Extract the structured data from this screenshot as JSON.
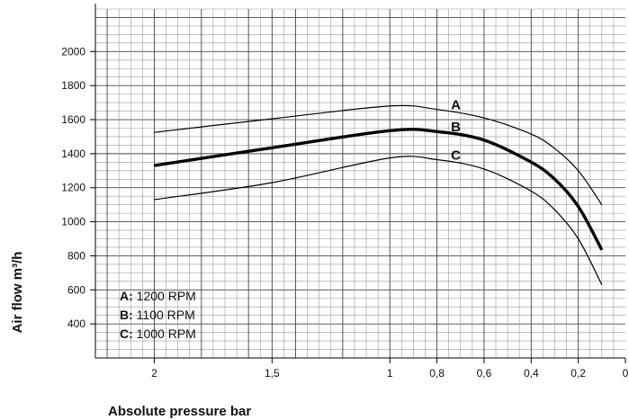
{
  "chart_data": {
    "type": "line",
    "title": "",
    "xlabel": "Absolute pressure  bar",
    "ylabel": "Air flow  m³/h",
    "x_axis_reversed": true,
    "xlim": [
      0,
      2.25
    ],
    "ylim": [
      200,
      2250
    ],
    "grid": true,
    "x_ticks": [
      2,
      1.5,
      1,
      0.8,
      0.6,
      0.4,
      0.2,
      0
    ],
    "x_tick_labels": [
      "2",
      "1,5",
      "1",
      "0,8",
      "0,6",
      "0,4",
      "0,2",
      "0"
    ],
    "y_ticks": [
      400,
      600,
      800,
      1000,
      1200,
      1400,
      1600,
      1800,
      2000
    ],
    "y_tick_labels": [
      "400",
      "600",
      "800",
      "1000",
      "1200",
      "1400",
      "1600",
      "1800",
      "2000"
    ],
    "series": [
      {
        "name": "A",
        "stroke": "thin",
        "x": [
          2,
          1.5,
          1,
          0.8,
          0.6,
          0.4,
          0.3,
          0.2,
          0.1
        ],
        "y": [
          1525,
          1605,
          1680,
          1660,
          1610,
          1515,
          1430,
          1300,
          1100
        ]
      },
      {
        "name": "B",
        "stroke": "bold",
        "x": [
          2,
          1.5,
          1,
          0.8,
          0.6,
          0.4,
          0.3,
          0.2,
          0.1
        ],
        "y": [
          1330,
          1435,
          1535,
          1530,
          1480,
          1350,
          1250,
          1090,
          835
        ]
      },
      {
        "name": "C",
        "stroke": "thin",
        "x": [
          2,
          1.5,
          1,
          0.8,
          0.6,
          0.4,
          0.3,
          0.2,
          0.1
        ],
        "y": [
          1130,
          1230,
          1375,
          1365,
          1310,
          1180,
          1070,
          900,
          630
        ]
      }
    ],
    "legend": {
      "placement": "bottom-left",
      "entries": [
        {
          "key": "A:",
          "label": "1200 RPM"
        },
        {
          "key": "B:",
          "label": "1100 RPM"
        },
        {
          "key": "C:",
          "label": "1000 RPM"
        }
      ]
    },
    "colors": {
      "line": "#000000",
      "grid": "#9a9a9a",
      "background": "#ffffff"
    }
  }
}
